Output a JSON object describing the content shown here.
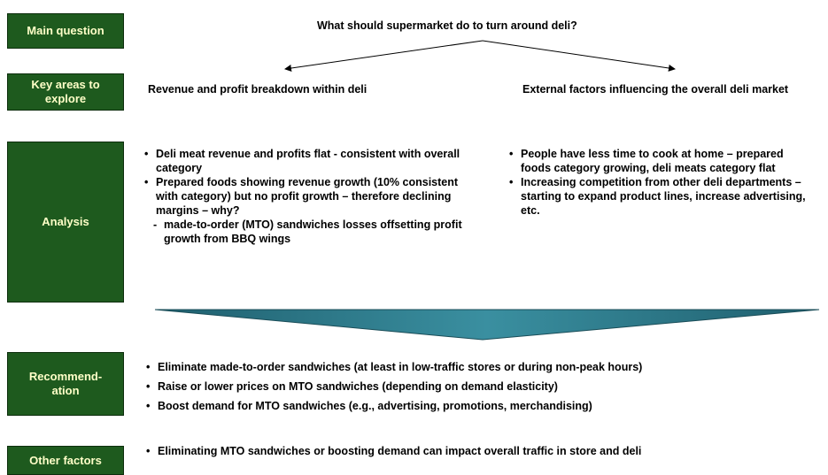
{
  "main_question": {
    "label": "Main question",
    "text": "What should supermarket do to turn around deli?"
  },
  "key_areas": {
    "label": "Key areas to explore",
    "items": [
      "Revenue and profit breakdown within deli",
      "External factors influencing the overall deli market"
    ]
  },
  "analysis": {
    "label": "Analysis",
    "left": {
      "bullets": [
        "Deli meat revenue and profits flat - consistent with overall category",
        "Prepared foods showing revenue growth (10% consistent with category) but no profit growth – therefore declining margins – why?"
      ],
      "sub_bullets": [
        "made-to-order (MTO) sandwiches losses offsetting profit growth from BBQ wings"
      ]
    },
    "right": {
      "bullets": [
        "People have less time to cook at home – prepared foods category growing, deli meats category flat",
        "Increasing competition from other deli departments – starting to expand product lines, increase advertising, etc."
      ]
    }
  },
  "recommendation": {
    "label": "Recommend-ation",
    "bullets": [
      "Eliminate made-to-order sandwiches (at least in low-traffic stores or during non-peak hours)",
      "Raise or lower prices on MTO sandwiches (depending on demand elasticity)",
      "Boost demand for MTO sandwiches (e.g., advertising, promotions, merchandising)"
    ]
  },
  "other_factors": {
    "label": "Other factors",
    "bullets": [
      "Eliminating MTO sandwiches or boosting demand can impact overall traffic in store and deli"
    ]
  }
}
